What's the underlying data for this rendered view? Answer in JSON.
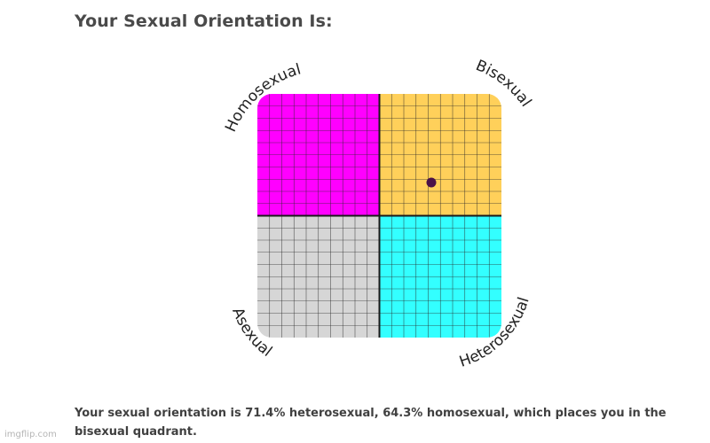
{
  "title": "Your Sexual Orientation Is:",
  "quadrants": {
    "top_left": {
      "label": "Homosexual",
      "color": "#ff00ff"
    },
    "top_right": {
      "label": "Bisexual",
      "color": "#ffd05a"
    },
    "bottom_left": {
      "label": "Asexual",
      "color": "#d6d6d6"
    },
    "bottom_right": {
      "label": "Heterosexual",
      "color": "#33ffff"
    }
  },
  "result": {
    "heterosexual_percent": 71.4,
    "homosexual_percent": 64.3,
    "text": "Your sexual orientation is 71.4% heterosexual, 64.3% homosexual, which places you in the bisexual quadrant."
  },
  "marker_color": "#4b1148",
  "watermark": "imgflip.com"
}
